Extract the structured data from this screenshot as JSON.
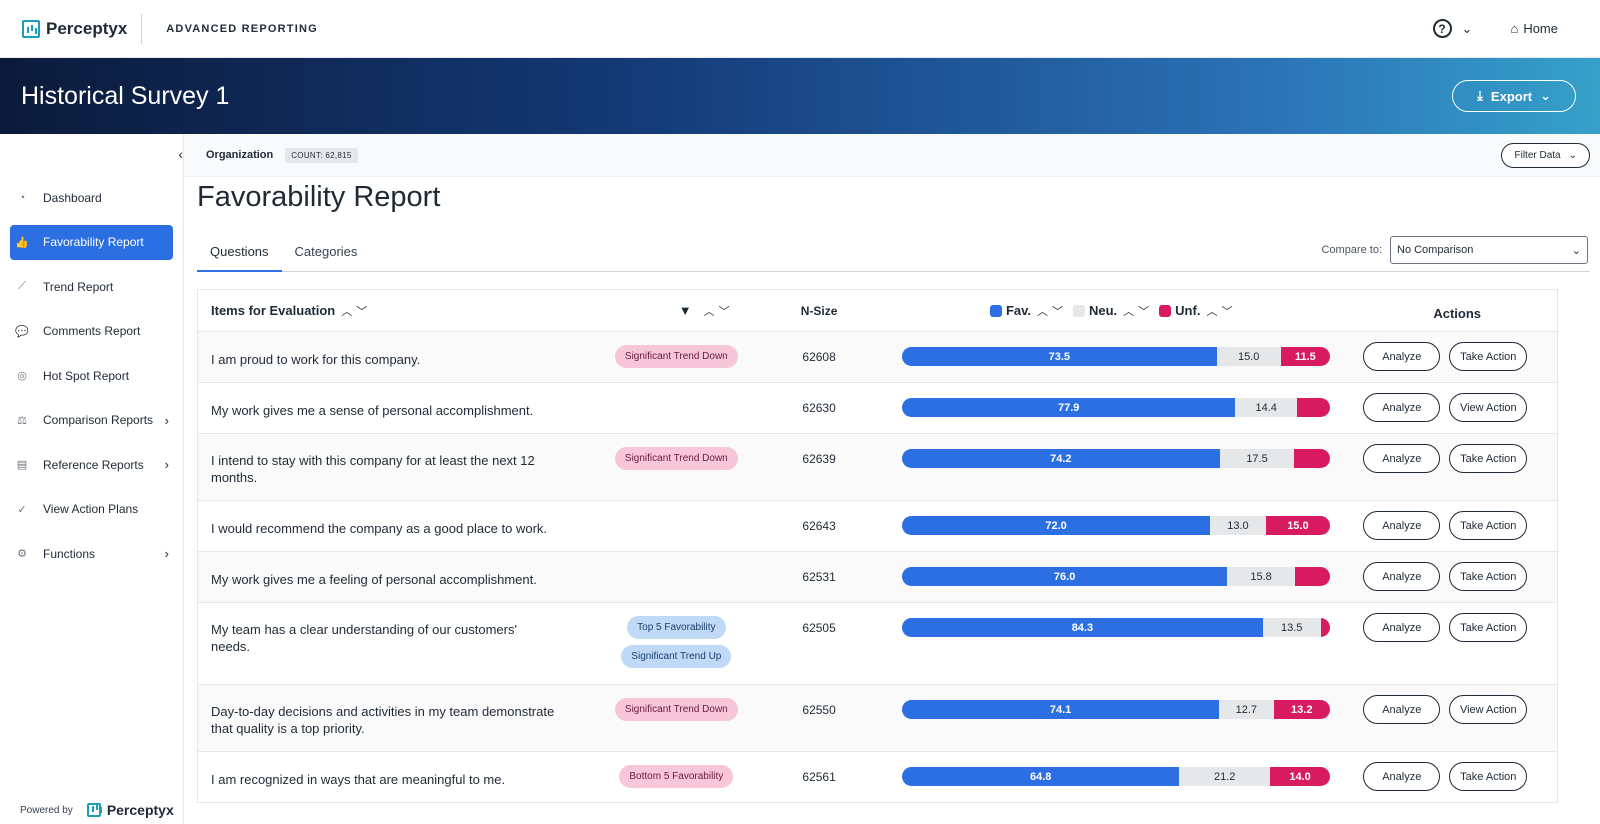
{
  "brand": {
    "name": "Perceptyx",
    "sub": "ADVANCED REPORTING"
  },
  "nav": {
    "help": "?",
    "home": "Home"
  },
  "banner": {
    "title": "Historical Survey 1",
    "export": "Export"
  },
  "sidebar": {
    "items": [
      {
        "label": "Dashboard",
        "icon": "gauge-icon",
        "glyph": "◔",
        "active": false,
        "chevron": false
      },
      {
        "label": "Favorability Report",
        "icon": "thumbs-up-icon",
        "glyph": "👍",
        "active": true,
        "chevron": false
      },
      {
        "label": "Trend Report",
        "icon": "line-chart-icon",
        "glyph": "⟋",
        "active": false,
        "chevron": false
      },
      {
        "label": "Comments Report",
        "icon": "comments-icon",
        "glyph": "💬",
        "active": false,
        "chevron": false
      },
      {
        "label": "Hot Spot Report",
        "icon": "target-icon",
        "glyph": "◎",
        "active": false,
        "chevron": false
      },
      {
        "label": "Comparison Reports",
        "icon": "scale-icon",
        "glyph": "⚖",
        "active": false,
        "chevron": true
      },
      {
        "label": "Reference Reports",
        "icon": "bar-chart-icon",
        "glyph": "▤",
        "active": false,
        "chevron": true
      },
      {
        "label": "View Action Plans",
        "icon": "check-circle-icon",
        "glyph": "✓",
        "active": false,
        "chevron": false
      },
      {
        "label": "Functions",
        "icon": "gear-icon",
        "glyph": "⚙",
        "active": false,
        "chevron": true
      }
    ],
    "powered_by": "Powered by"
  },
  "orgbar": {
    "label": "Organization",
    "count": "COUNT: 62,815",
    "filter": "Filter Data"
  },
  "page": {
    "title": "Favorability Report"
  },
  "tabs": [
    {
      "label": "Questions",
      "active": true
    },
    {
      "label": "Categories",
      "active": false
    }
  ],
  "compare": {
    "label": "Compare to:",
    "value": "No Comparison"
  },
  "table": {
    "headers": {
      "item": "Items for Evaluation",
      "nsize": "N-Size",
      "fav": "Fav.",
      "neu": "Neu.",
      "unf": "Unf.",
      "actions": "Actions"
    },
    "colors": {
      "fav": "#2c6fe3",
      "neu": "#e6e7e9",
      "unf": "#d81b60"
    },
    "rows": [
      {
        "text": "I am proud to work for this company.",
        "tags": [
          {
            "label": "Significant Trend Down",
            "kind": "down"
          }
        ],
        "n": "62608",
        "fav": 73.5,
        "neu": 15.0,
        "unf": 11.5,
        "fav_label": "73.5",
        "neu_label": "15.0",
        "unf_label": "11.5",
        "action": "Take Action",
        "height": 51
      },
      {
        "text": "My work gives me a sense of personal accomplishment.",
        "tags": [],
        "n": "62630",
        "fav": 77.9,
        "neu": 14.4,
        "unf": 7.7,
        "fav_label": "77.9",
        "neu_label": "14.4",
        "unf_label": "",
        "action": "View Action",
        "height": 51
      },
      {
        "text": "I intend to stay with this company for at least the next 12 months.",
        "tags": [
          {
            "label": "Significant Trend Down",
            "kind": "down"
          }
        ],
        "n": "62639",
        "fav": 74.2,
        "neu": 17.5,
        "unf": 8.3,
        "fav_label": "74.2",
        "neu_label": "17.5",
        "unf_label": "",
        "action": "Take Action",
        "height": 67
      },
      {
        "text": "I would recommend the company as a good place to work.",
        "tags": [],
        "n": "62643",
        "fav": 72.0,
        "neu": 13.0,
        "unf": 15.0,
        "fav_label": "72.0",
        "neu_label": "13.0",
        "unf_label": "15.0",
        "action": "Take Action",
        "height": 51
      },
      {
        "text": "My work gives me a feeling of personal accomplishment.",
        "tags": [],
        "n": "62531",
        "fav": 76.0,
        "neu": 15.8,
        "unf": 8.2,
        "fav_label": "76.0",
        "neu_label": "15.8",
        "unf_label": "",
        "action": "Take Action",
        "height": 51
      },
      {
        "text": "My team has a clear understanding of our customers' needs.",
        "tags": [
          {
            "label": "Top 5 Favorability",
            "kind": "up"
          },
          {
            "label": "Significant Trend Up",
            "kind": "up"
          }
        ],
        "n": "62505",
        "fav": 84.3,
        "neu": 13.5,
        "unf": 2.2,
        "fav_label": "84.3",
        "neu_label": "13.5",
        "unf_label": "",
        "action": "Take Action",
        "height": 82
      },
      {
        "text": "Day-to-day decisions and activities in my team demonstrate that quality is a top priority.",
        "tags": [
          {
            "label": "Significant Trend Down",
            "kind": "down"
          }
        ],
        "n": "62550",
        "fav": 74.1,
        "neu": 12.7,
        "unf": 13.2,
        "fav_label": "74.1",
        "neu_label": "12.7",
        "unf_label": "13.2",
        "action": "View Action",
        "height": 67
      },
      {
        "text": "I am recognized in ways that are meaningful to me.",
        "tags": [
          {
            "label": "Bottom 5 Favorability",
            "kind": "bottom"
          }
        ],
        "n": "62561",
        "fav": 64.8,
        "neu": 21.2,
        "unf": 14.0,
        "fav_label": "64.8",
        "neu_label": "21.2",
        "unf_label": "14.0",
        "action": "Take Action",
        "height": 51
      }
    ],
    "analyze": "Analyze"
  }
}
